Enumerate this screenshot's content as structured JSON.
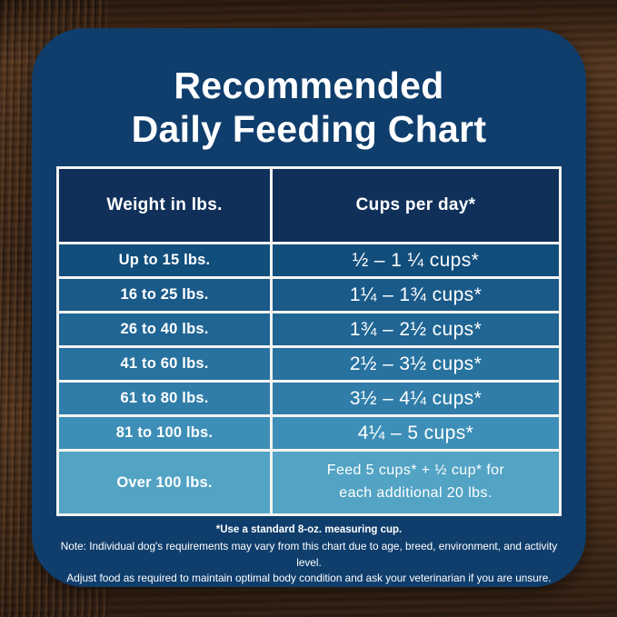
{
  "title": {
    "line1": "Recommended",
    "line2": "Daily Feeding Chart"
  },
  "table": {
    "headers": [
      "Weight in lbs.",
      "Cups per day*"
    ],
    "rows": [
      {
        "weight": "Up to 15 lbs.",
        "cups": "½ – 1 ¼ cups*",
        "bg": "#124e7c"
      },
      {
        "weight": "16 to 25 lbs.",
        "cups": "1¼ – 1¾ cups*",
        "bg": "#1a5a89"
      },
      {
        "weight": "26 to 40 lbs.",
        "cups": "1¾ – 2½ cups*",
        "bg": "#206593"
      },
      {
        "weight": "41 to 60 lbs.",
        "cups": "2½ – 3½ cups*",
        "bg": "#28729f"
      },
      {
        "weight": "61 to 80 lbs.",
        "cups": "3½ – 4¼ cups*",
        "bg": "#307da9"
      },
      {
        "weight": "81 to 100 lbs.",
        "cups": "4¼ – 5 cups*",
        "bg": "#3d8fb7"
      },
      {
        "weight": "Over 100 lbs.",
        "cups": "Feed 5 cups* + ½ cup* for\neach additional 20 lbs.",
        "bg": "#52a3c4",
        "tall": true
      }
    ]
  },
  "footnotes": {
    "asterisk": "*Use a standard 8-oz. measuring cup.",
    "note_line1": "Note: Individual dog's requirements may vary from this chart due to age, breed, environment, and activity level.",
    "note_line2": "Adjust food as required to maintain optimal body condition and ask your veterinarian if you are unsure."
  },
  "colors": {
    "card_bg": "#0f3e6d",
    "header_bg": "#10305a",
    "table_border": "#f3f3f1",
    "text": "#ffffff",
    "wood_base": "#4a3120"
  },
  "chart_data": {
    "type": "table",
    "title": "Recommended Daily Feeding Chart",
    "columns": [
      "Weight in lbs.",
      "Cups per day*"
    ],
    "rows": [
      [
        "Up to 15 lbs.",
        "½ – 1 ¼ cups*"
      ],
      [
        "16 to 25 lbs.",
        "1¼ – 1¾ cups*"
      ],
      [
        "26 to 40 lbs.",
        "1¾ – 2½ cups*"
      ],
      [
        "41 to 60 lbs.",
        "2½ – 3½ cups*"
      ],
      [
        "61 to 80 lbs.",
        "3½ – 4¼ cups*"
      ],
      [
        "81 to 100 lbs.",
        "4¼ – 5 cups*"
      ],
      [
        "Over 100 lbs.",
        "Feed 5 cups* + ½ cup* for each additional 20 lbs."
      ]
    ],
    "footnote": "*Use a standard 8-oz. measuring cup."
  }
}
